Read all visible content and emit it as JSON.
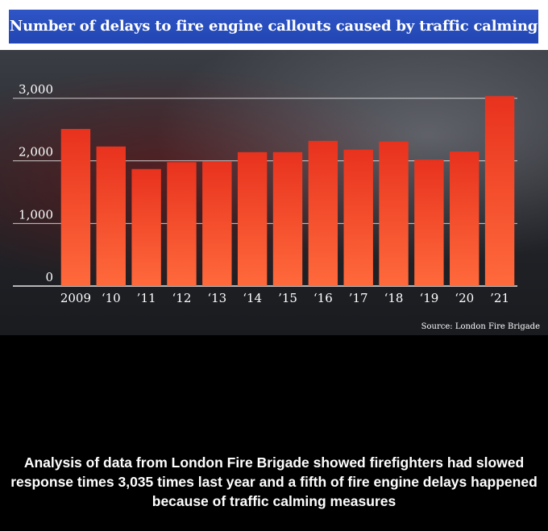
{
  "header": {
    "title": "Number of delays to fire engine callouts caused by traffic calming measures"
  },
  "chart_data": {
    "type": "bar",
    "title": "Number of delays to fire engine callouts caused by traffic calming measures",
    "categories": [
      "2009",
      "‘10",
      "’11",
      "‘12",
      "‘13",
      "‘14",
      "’15",
      "‘16",
      "’17",
      "‘18",
      "‘19",
      "‘20",
      "’21"
    ],
    "values": [
      2510,
      2230,
      1870,
      1980,
      1990,
      2140,
      2140,
      2320,
      2180,
      2310,
      2020,
      2150,
      3035
    ],
    "yticks": [
      "0",
      "1,000",
      "2,000",
      "3,000"
    ],
    "ytick_values": [
      0,
      1000,
      2000,
      3000
    ],
    "ylim": [
      0,
      3000
    ],
    "xlabel": "",
    "ylabel": "",
    "grid": true,
    "bar_color_top": "#e8321e",
    "bar_color_bottom": "#ff6a3c",
    "source": "Source: London Fire Brigade"
  },
  "caption": {
    "text": "Analysis of data from London Fire Brigade showed firefighters had slowed response times 3,035 times last year and a fifth of fire engine delays happened because of traffic calming measures"
  }
}
